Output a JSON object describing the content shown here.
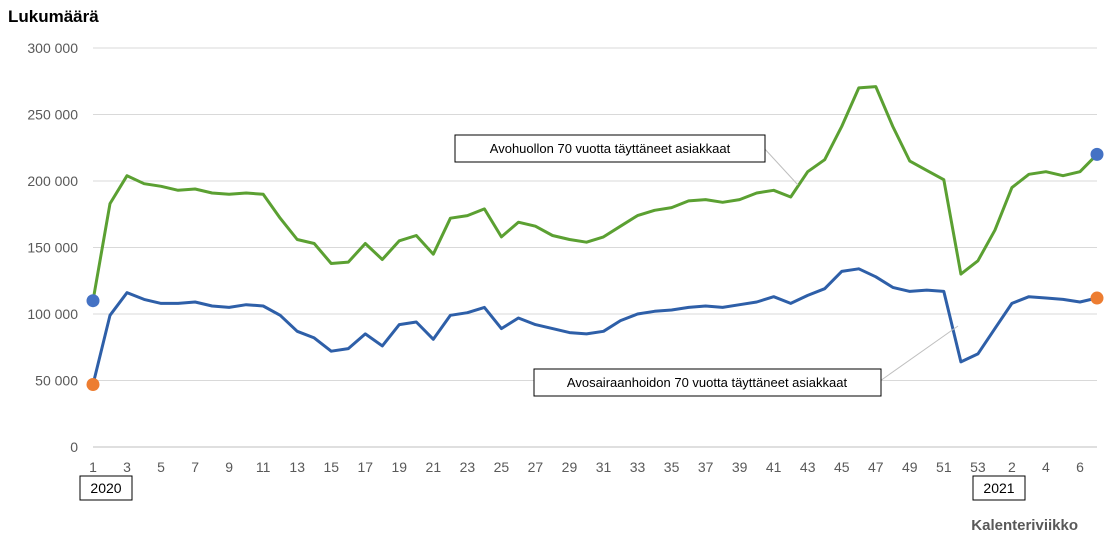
{
  "chart_data": {
    "type": "line",
    "ylabel": "Lukumäärä",
    "xlabel": "Kalenteriviikko",
    "ylim": [
      0,
      300000
    ],
    "y_ticks": [
      0,
      50000,
      100000,
      150000,
      200000,
      250000,
      300000
    ],
    "y_tick_labels": [
      "0",
      "50 000",
      "100 000",
      "150 000",
      "200 000",
      "250 000",
      "300 000"
    ],
    "grid": "horizontal",
    "x": [
      "1",
      "2",
      "3",
      "4",
      "5",
      "6",
      "7",
      "8",
      "9",
      "10",
      "11",
      "12",
      "13",
      "14",
      "15",
      "16",
      "17",
      "18",
      "19",
      "20",
      "21",
      "22",
      "23",
      "24",
      "25",
      "26",
      "27",
      "28",
      "29",
      "30",
      "31",
      "32",
      "33",
      "34",
      "35",
      "36",
      "37",
      "38",
      "39",
      "40",
      "41",
      "42",
      "43",
      "44",
      "45",
      "46",
      "47",
      "48",
      "49",
      "50",
      "51",
      "52",
      "53",
      "1",
      "2",
      "3",
      "4",
      "5",
      "6",
      "7"
    ],
    "x_tick_labels": [
      "1",
      "3",
      "5",
      "7",
      "9",
      "11",
      "13",
      "15",
      "17",
      "19",
      "21",
      "23",
      "25",
      "27",
      "29",
      "31",
      "33",
      "35",
      "37",
      "39",
      "41",
      "43",
      "45",
      "47",
      "49",
      "51",
      "53",
      "2",
      "4",
      "6"
    ],
    "year_labels": [
      "2020",
      "2021"
    ],
    "series": [
      {
        "name": "Avohuollon 70 vuotta täyttäneet asiakkaat",
        "color": "#5ba032",
        "start_marker_color": "#4472c4",
        "end_marker_color": "#4472c4",
        "values": [
          110000,
          183000,
          204000,
          198000,
          196000,
          193000,
          194000,
          191000,
          190000,
          191000,
          190000,
          172000,
          156000,
          153000,
          138000,
          139000,
          153000,
          141000,
          155000,
          159000,
          145000,
          172000,
          174000,
          179000,
          158000,
          169000,
          166000,
          159000,
          156000,
          154000,
          158000,
          166000,
          174000,
          178000,
          180000,
          185000,
          186000,
          184000,
          186000,
          191000,
          193000,
          188000,
          207000,
          216000,
          241000,
          270000,
          271000,
          241000,
          215000,
          208000,
          201000,
          130000,
          140000,
          163000,
          195000,
          205000,
          207000,
          204000,
          207000,
          220000
        ]
      },
      {
        "name": "Avosairaanhoidon 70 vuotta täyttäneet asiakkaat",
        "color": "#2e5fa8",
        "start_marker_color": "#ed7d31",
        "end_marker_color": "#ed7d31",
        "values": [
          47000,
          99000,
          116000,
          111000,
          108000,
          108000,
          109000,
          106000,
          105000,
          107000,
          106000,
          99000,
          87000,
          82000,
          72000,
          74000,
          85000,
          76000,
          92000,
          94000,
          81000,
          99000,
          101000,
          105000,
          89000,
          97000,
          92000,
          89000,
          86000,
          85000,
          87000,
          95000,
          100000,
          102000,
          103000,
          105000,
          106000,
          105000,
          107000,
          109000,
          113000,
          108000,
          114000,
          119000,
          132000,
          134000,
          128000,
          120000,
          117000,
          118000,
          117000,
          64000,
          70000,
          89000,
          108000,
          113000,
          112000,
          111000,
          109000,
          112000
        ]
      }
    ],
    "annotations": [
      "Avohuollon 70 vuotta täyttäneet asiakkaat",
      "Avosairaanhoidon 70 vuotta täyttäneet asiakkaat"
    ]
  }
}
